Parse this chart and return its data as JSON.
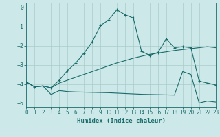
{
  "xlabel": "Humidex (Indice chaleur)",
  "bg_color": "#cce8e8",
  "grid_color": "#aacccc",
  "line_color": "#1a6b6b",
  "xlim": [
    0,
    23
  ],
  "ylim": [
    -5.2,
    0.25
  ],
  "x_ticks": [
    0,
    1,
    2,
    3,
    4,
    5,
    6,
    7,
    8,
    9,
    10,
    11,
    12,
    13,
    14,
    15,
    16,
    17,
    18,
    19,
    20,
    21,
    22,
    23
  ],
  "y_ticks": [
    0,
    -1,
    -2,
    -3,
    -4,
    -5
  ],
  "line_marked_x": [
    0,
    1,
    2,
    3,
    4,
    5,
    6,
    7,
    8,
    9,
    10,
    11,
    12,
    13,
    14,
    15,
    16,
    17,
    18,
    19,
    20,
    21,
    22,
    23
  ],
  "line_marked_y": [
    -3.9,
    -4.15,
    -4.1,
    -4.2,
    -3.8,
    -3.3,
    -2.9,
    -2.4,
    -1.8,
    -0.95,
    -0.65,
    -0.12,
    -0.38,
    -0.55,
    -2.3,
    -2.5,
    -2.35,
    -1.65,
    -2.1,
    -2.05,
    -2.1,
    -3.85,
    -3.95,
    -4.05
  ],
  "line_mid_x": [
    0,
    1,
    2,
    3,
    4,
    5,
    6,
    7,
    8,
    9,
    10,
    11,
    12,
    13,
    14,
    15,
    16,
    17,
    18,
    19,
    20,
    21,
    22,
    23
  ],
  "line_mid_y": [
    -3.9,
    -4.15,
    -4.1,
    -4.2,
    -3.95,
    -3.8,
    -3.65,
    -3.5,
    -3.35,
    -3.2,
    -3.05,
    -2.9,
    -2.78,
    -2.65,
    -2.55,
    -2.45,
    -2.38,
    -2.32,
    -2.25,
    -2.2,
    -2.15,
    -2.1,
    -2.05,
    -2.1
  ],
  "line_bot_x": [
    0,
    1,
    2,
    3,
    4,
    5,
    6,
    7,
    8,
    9,
    10,
    11,
    12,
    13,
    14,
    15,
    16,
    17,
    18,
    19,
    20,
    21,
    22,
    23
  ],
  "line_bot_y": [
    -3.9,
    -4.15,
    -4.1,
    -4.55,
    -4.35,
    -4.4,
    -4.42,
    -4.43,
    -4.44,
    -4.45,
    -4.46,
    -4.48,
    -4.5,
    -4.52,
    -4.54,
    -4.55,
    -4.56,
    -4.57,
    -4.58,
    -3.35,
    -3.5,
    -5.0,
    -4.9,
    -4.95
  ],
  "figsize": [
    3.2,
    2.0
  ],
  "dpi": 100
}
